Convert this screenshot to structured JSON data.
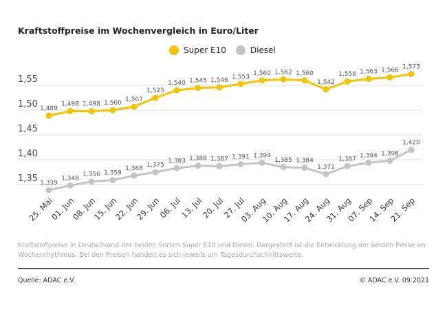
{
  "title": "Kraftstoffpreise im Wochenvergleich in Euro/Liter",
  "note": "Kraftstoffpreise in Deutschland der beiden Sorten Super E10 und Diesel. Dargestellt ist die Entwicklung der beiden Preise im Wochenrhythmus. Bei den Preisen handelt es sich jeweils um Tagesdurchschnittswerte.",
  "source": "Quelle: ADAC e.V.",
  "copyright": "© ADAC e.V. 09.2021",
  "colors": {
    "super": "#f5c400",
    "diesel": "#c4c4c4",
    "grid": "#dddddd"
  },
  "chart_data": {
    "type": "line",
    "title": "Kraftstoffpreise im Wochenvergleich in Euro/Liter",
    "xlabel": "",
    "ylabel": "",
    "ylim": [
      1.32,
      1.58
    ],
    "yticks": [
      1.55,
      1.5,
      1.45,
      1.4,
      1.35
    ],
    "ytick_labels": [
      "1,55",
      "1,50",
      "1,45",
      "1,40",
      "1,35"
    ],
    "grid": true,
    "legend": "top-center",
    "categories": [
      "25. Mai",
      "01. Jun",
      "08. Jun",
      "15. Jun",
      "22. Jun",
      "29. Jun",
      "06. Jul",
      "13. Jul",
      "20. Jul",
      "27. Jul",
      "03. Aug",
      "10. Aug",
      "17. Aug",
      "24. Aug",
      "31. Aug",
      "07. Sep",
      "14. Sep",
      "21. Sep"
    ],
    "series": [
      {
        "name": "Super E10",
        "color": "#f5c400",
        "values": [
          1.489,
          1.498,
          1.498,
          1.5,
          1.507,
          1.525,
          1.54,
          1.545,
          1.546,
          1.553,
          1.56,
          1.562,
          1.56,
          1.542,
          1.558,
          1.563,
          1.566,
          1.573
        ]
      },
      {
        "name": "Diesel",
        "color": "#c4c4c4",
        "values": [
          1.339,
          1.348,
          1.356,
          1.359,
          1.368,
          1.375,
          1.383,
          1.388,
          1.387,
          1.391,
          1.394,
          1.385,
          1.384,
          1.371,
          1.387,
          1.394,
          1.398,
          1.42
        ]
      }
    ]
  }
}
